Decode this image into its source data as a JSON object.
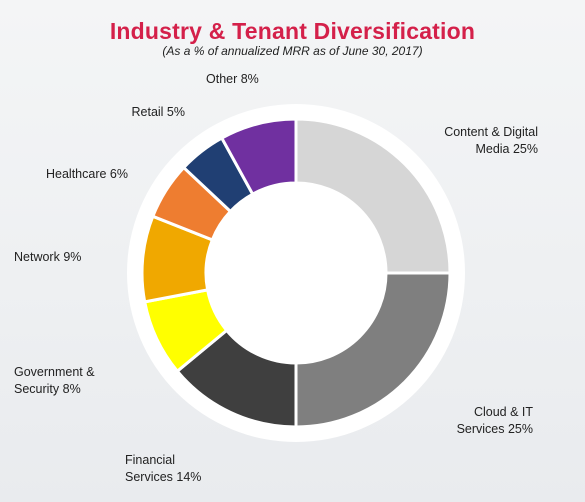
{
  "header": {
    "title": "Industry & Tenant Diversification",
    "subtitle": "(As a % of annualized MRR as of June 30, 2017)"
  },
  "chart_data": {
    "type": "pie",
    "style": "donut",
    "title": "Industry & Tenant Diversification",
    "subtitle": "(As a % of annualized MRR as of June 30, 2017)",
    "slices": [
      {
        "key": "content",
        "label": "Content & Digital\nMedia 25%",
        "name": "Content & Digital Media",
        "value": 25,
        "color": "#d6d6d6"
      },
      {
        "key": "cloud",
        "label": "Cloud & IT\nServices 25%",
        "name": "Cloud & IT Services",
        "value": 25,
        "color": "#7f7f7f"
      },
      {
        "key": "financial",
        "label": "Financial\nServices 14%",
        "name": "Financial Services",
        "value": 14,
        "color": "#3f3f3f"
      },
      {
        "key": "government",
        "label": "Government &\nSecurity 8%",
        "name": "Government & Security",
        "value": 8,
        "color": "#ffff00"
      },
      {
        "key": "network",
        "label": "Network 9%",
        "name": "Network",
        "value": 9,
        "color": "#f0a800"
      },
      {
        "key": "healthcare",
        "label": "Healthcare 6%",
        "name": "Healthcare",
        "value": 6,
        "color": "#ee7d30"
      },
      {
        "key": "retail",
        "label": "Retail 5%",
        "name": "Retail",
        "value": 5,
        "color": "#203f73"
      },
      {
        "key": "other",
        "label": "Other 8%",
        "name": "Other",
        "value": 8,
        "color": "#7030a0"
      }
    ],
    "start_angle": "12 o'clock",
    "direction": "clockwise",
    "legend": "none (labels placed around the ring)"
  }
}
